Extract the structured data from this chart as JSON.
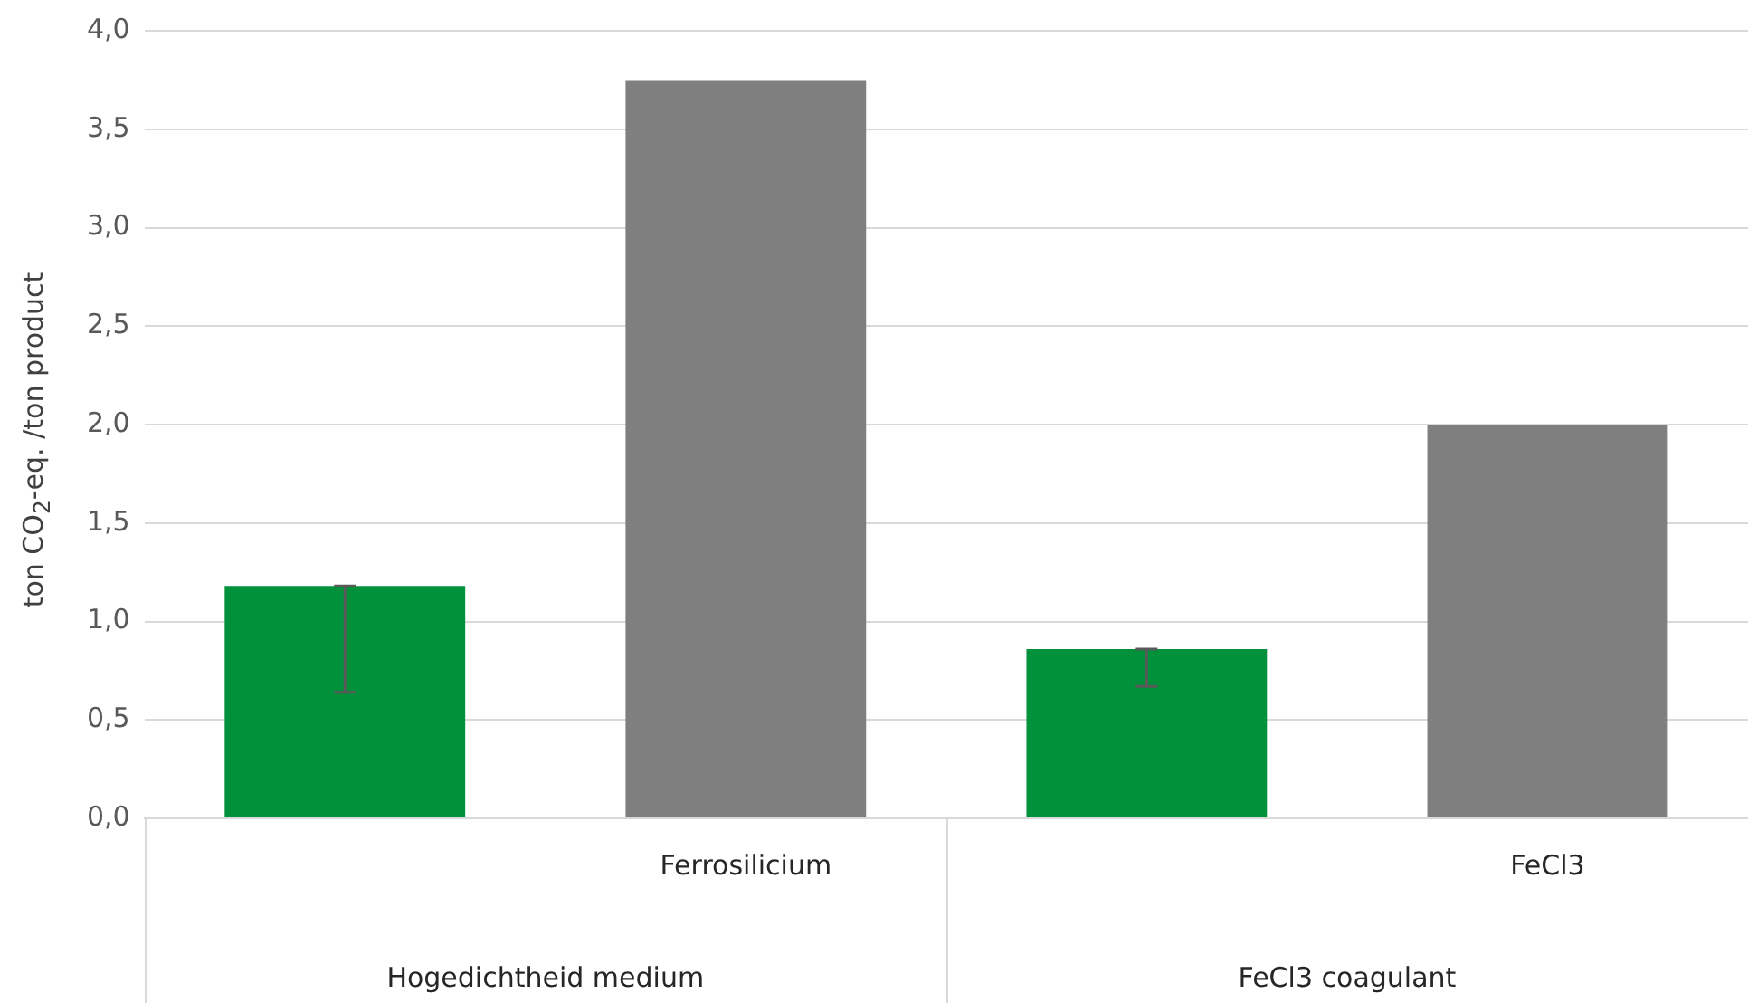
{
  "chart_data": {
    "type": "bar",
    "ylabel": "ton CO$_{2}$-eq. /ton product",
    "categories": [
      null,
      "Ferrosilicium",
      null,
      "FeCl3"
    ],
    "values": [
      1.18,
      3.75,
      0.86,
      2.0
    ],
    "colors": [
      "#00913a",
      "#7f7f7f",
      "#00913a",
      "#7f7f7f"
    ],
    "errors": [
      [
        0.64,
        1.18
      ],
      null,
      [
        0.67,
        0.86
      ],
      null
    ],
    "annotations": [
      "Hogedichtheid medium",
      "FeCl3 coagulant"
    ],
    "ylim": [
      0,
      4
    ],
    "yticks": [
      {
        "value": 0,
        "label": "0,0"
      },
      {
        "value": 0.5,
        "label": "0,5"
      },
      {
        "value": 1,
        "label": "1,0"
      },
      {
        "value": 1.5,
        "label": "1,5"
      },
      {
        "value": 2,
        "label": "2,0"
      },
      {
        "value": 2.5,
        "label": "2,5"
      },
      {
        "value": 3,
        "label": "3,0"
      },
      {
        "value": 3.5,
        "label": "3,5"
      },
      {
        "value": 4,
        "label": "4,0"
      }
    ],
    "grid": "y",
    "legend": false
  }
}
